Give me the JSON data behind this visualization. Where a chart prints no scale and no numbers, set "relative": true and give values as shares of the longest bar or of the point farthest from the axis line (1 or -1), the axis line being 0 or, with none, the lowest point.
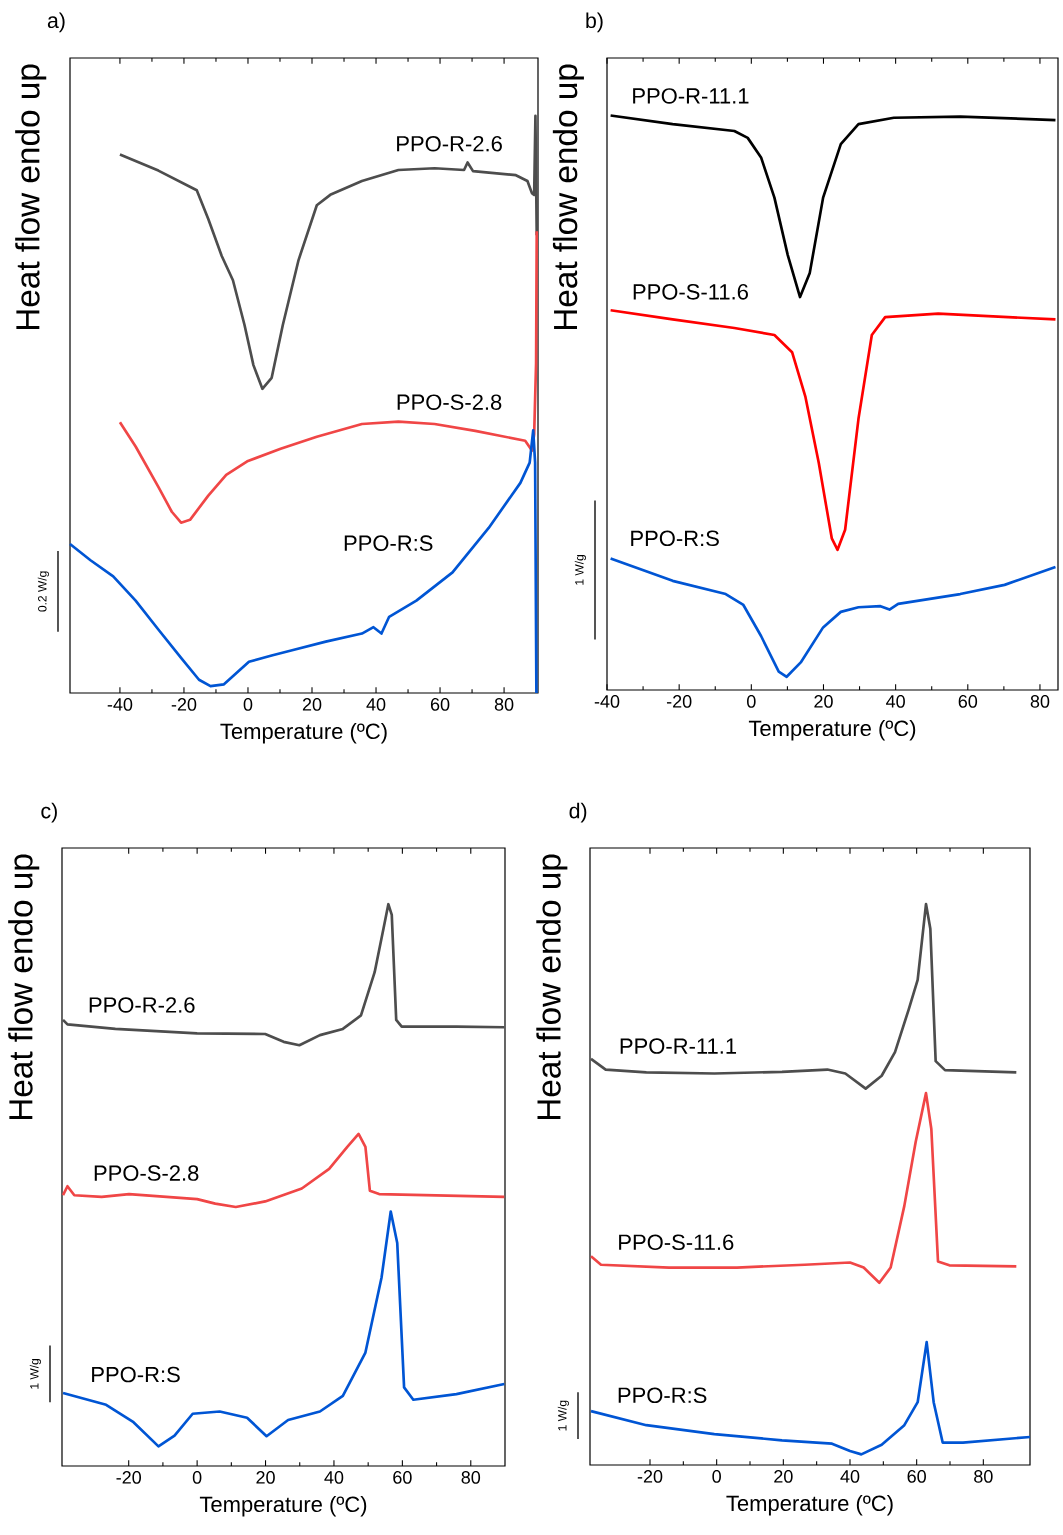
{
  "chart_data": [
    {
      "type": "line",
      "title": "a)",
      "xlabel": "Temperature (ºC)",
      "ylabel": "Heat flow endo up",
      "relative": true,
      "xlim": [
        -55.6,
        90.6
      ],
      "xticks": [
        -40,
        -20,
        0,
        20,
        40,
        60,
        80
      ],
      "annotations": [
        "0.2 W/g"
      ],
      "series": [
        {
          "name": "PPO-R-2.6",
          "color": "#4d4d4d",
          "x": [
            -40,
            -28,
            -16,
            -12.4,
            -8.2,
            -4.7,
            -1.1,
            1.7,
            4.5,
            7.4,
            10.9,
            15.8,
            21.5,
            25.7,
            35.6,
            47.0,
            58.3,
            67.5,
            68.6,
            70.3,
            83.7,
            87.3,
            88.7,
            89.4,
            89.8,
            90.2
          ],
          "values": [
            0.933,
            0.905,
            0.871,
            0.821,
            0.757,
            0.715,
            0.638,
            0.568,
            0.527,
            0.546,
            0.638,
            0.75,
            0.845,
            0.863,
            0.887,
            0.906,
            0.909,
            0.906,
            0.919,
            0.904,
            0.897,
            0.887,
            0.866,
            0.863,
            1.0,
            0.793
          ]
        },
        {
          "name": "PPO-S-2.8",
          "color": "#f04646",
          "x": [
            -40,
            -35.1,
            -28.0,
            -23.8,
            -20.9,
            -18.1,
            -12.4,
            -6.8,
            0,
            10.2,
            21.5,
            35.6,
            47.0,
            58.3,
            71.0,
            86.6,
            88.7,
            89.4,
            90.0,
            90.2
          ],
          "values": [
            0.469,
            0.427,
            0.357,
            0.314,
            0.295,
            0.3,
            0.342,
            0.378,
            0.402,
            0.423,
            0.444,
            0.466,
            0.47,
            0.466,
            0.454,
            0.437,
            0.42,
            0.448,
            0.571,
            0.8
          ]
        },
        {
          "name": "PPO-R:S",
          "color": "#0055d4",
          "x": [
            -55.6,
            -49.2,
            -42.1,
            -35.1,
            -28.0,
            -20.9,
            -15.3,
            -11.7,
            -7.5,
            0.3,
            7.4,
            14.4,
            24.3,
            35.6,
            39.2,
            41.7,
            44.1,
            52.6,
            63.9,
            75.2,
            85.1,
            88.0,
            89.1,
            89.7,
            90.1
          ],
          "values": [
            0.258,
            0.23,
            0.202,
            0.16,
            0.11,
            0.061,
            0.023,
            0.012,
            0.015,
            0.054,
            0.065,
            0.075,
            0.089,
            0.103,
            0.114,
            0.103,
            0.132,
            0.16,
            0.209,
            0.286,
            0.364,
            0.399,
            0.455,
            0.399,
            0.0
          ]
        }
      ]
    },
    {
      "type": "line",
      "title": "b)",
      "xlabel": "Temperature (ºC)",
      "ylabel": "Heat flow endo up",
      "relative": true,
      "xlim": [
        -40,
        85
      ],
      "xticks": [
        -40,
        -20,
        0,
        20,
        40,
        60,
        80
      ],
      "annotations": [
        "1 W/g"
      ],
      "series": [
        {
          "name": "PPO-R-11.1",
          "color": "#000000",
          "x": [
            -39,
            -21.8,
            -4.7,
            -1.0,
            2.7,
            6.4,
            10.1,
            13.5,
            16.2,
            19.9,
            24.8,
            29.7,
            39.5,
            57.9,
            84.3
          ],
          "values": [
            1.0,
            0.985,
            0.973,
            0.961,
            0.927,
            0.857,
            0.757,
            0.684,
            0.726,
            0.857,
            0.95,
            0.985,
            0.996,
            0.998,
            0.992
          ]
        },
        {
          "name": "PPO-S-11.6",
          "color": "#ff0000",
          "x": [
            -39,
            -21.8,
            -4.7,
            6.4,
            11.3,
            15.0,
            18.7,
            22.3,
            23.9,
            26.0,
            29.7,
            33.4,
            37.1,
            51.8,
            84.3
          ],
          "values": [
            0.661,
            0.645,
            0.63,
            0.618,
            0.588,
            0.51,
            0.395,
            0.264,
            0.244,
            0.279,
            0.472,
            0.618,
            0.649,
            0.655,
            0.645
          ]
        },
        {
          "name": "PPO-R:S",
          "color": "#0055d4",
          "x": [
            -39,
            -21.8,
            -7.1,
            -2.2,
            2.7,
            7.6,
            9.8,
            13.7,
            19.9,
            24.8,
            29.7,
            35.8,
            38.3,
            40.7,
            57.9,
            70.2,
            84.3
          ],
          "values": [
            0.229,
            0.19,
            0.167,
            0.148,
            0.094,
            0.032,
            0.023,
            0.048,
            0.109,
            0.136,
            0.144,
            0.146,
            0.14,
            0.15,
            0.167,
            0.183,
            0.214
          ]
        }
      ]
    },
    {
      "type": "line",
      "title": "c)",
      "xlabel": "Temperature (ºC)",
      "ylabel": "Heat flow endo up",
      "relative": true,
      "xlim": [
        -39.5,
        90
      ],
      "xticks": [
        -20,
        0,
        20,
        40,
        60,
        80
      ],
      "annotations": [
        "1 W/g"
      ],
      "series": [
        {
          "name": "PPO-R-2.6",
          "color": "#4d4d4d",
          "x": [
            -39.2,
            -37.9,
            -23.9,
            0,
            19.9,
            25.3,
            29.9,
            35.9,
            42.6,
            47.9,
            51.9,
            54.5,
            55.9,
            56.9,
            58.2,
            59.8,
            75.8,
            89.8
          ],
          "values": [
            0.794,
            0.786,
            0.778,
            0.77,
            0.769,
            0.755,
            0.749,
            0.767,
            0.778,
            0.802,
            0.879,
            0.957,
            1.0,
            0.981,
            0.794,
            0.782,
            0.782,
            0.781
          ]
        },
        {
          "name": "PPO-S-2.8",
          "color": "#f04646",
          "x": [
            -39.2,
            -37.9,
            -35.9,
            -27.9,
            -19.9,
            0,
            5.3,
            11.3,
            19.9,
            30.6,
            38.6,
            43.9,
            47.2,
            49.2,
            50.5,
            53.2,
            89.8
          ],
          "values": [
            0.482,
            0.498,
            0.482,
            0.479,
            0.484,
            0.475,
            0.467,
            0.461,
            0.471,
            0.494,
            0.529,
            0.568,
            0.591,
            0.568,
            0.49,
            0.484,
            0.479
          ]
        },
        {
          "name": "PPO-R:S",
          "color": "#0055d4",
          "x": [
            -39.2,
            -26.6,
            -18.6,
            -11.3,
            -6.6,
            -1.3,
            6.6,
            14.6,
            20.3,
            26.6,
            35.9,
            42.6,
            49.2,
            53.9,
            56.6,
            58.5,
            60.5,
            63.2,
            75.8,
            89.8
          ],
          "values": [
            0.13,
            0.109,
            0.078,
            0.035,
            0.054,
            0.093,
            0.097,
            0.086,
            0.053,
            0.082,
            0.097,
            0.125,
            0.202,
            0.335,
            0.453,
            0.397,
            0.14,
            0.118,
            0.128,
            0.146
          ]
        }
      ]
    },
    {
      "type": "line",
      "title": "d)",
      "xlabel": "Temperature (ºC)",
      "ylabel": "Heat flow endo up",
      "relative": true,
      "xlim": [
        -38,
        94
      ],
      "xticks": [
        -20,
        0,
        20,
        40,
        60,
        80
      ],
      "annotations": [
        "1 W/g"
      ],
      "series": [
        {
          "name": "PPO-R-11.1",
          "color": "#4d4d4d",
          "x": [
            -37.7,
            -33.3,
            -21.1,
            -0.7,
            19.6,
            33.2,
            38.6,
            44.7,
            49.5,
            53.5,
            57.6,
            60.3,
            62.8,
            64.1,
            65.7,
            68.5,
            89.9
          ],
          "values": [
            0.724,
            0.705,
            0.7,
            0.698,
            0.701,
            0.705,
            0.698,
            0.671,
            0.694,
            0.736,
            0.812,
            0.865,
            1.0,
            0.956,
            0.72,
            0.704,
            0.7
          ]
        },
        {
          "name": "PPO-S-11.6",
          "color": "#f04646",
          "x": [
            -37.7,
            -34.7,
            -14.3,
            6.1,
            26.4,
            40.0,
            44.1,
            48.8,
            52.2,
            56.3,
            59.7,
            62.8,
            64.4,
            66.4,
            69.8,
            89.9
          ],
          "values": [
            0.372,
            0.357,
            0.352,
            0.352,
            0.357,
            0.361,
            0.352,
            0.325,
            0.352,
            0.462,
            0.576,
            0.663,
            0.599,
            0.363,
            0.356,
            0.354
          ]
        },
        {
          "name": "PPO-R:S",
          "color": "#0055d4",
          "x": [
            -37.7,
            -21.1,
            -0.7,
            19.6,
            34.6,
            40.0,
            43.4,
            49.5,
            56.3,
            60.3,
            63.0,
            65.1,
            67.8,
            73.9,
            94.0
          ],
          "values": [
            0.096,
            0.071,
            0.055,
            0.044,
            0.038,
            0.025,
            0.019,
            0.036,
            0.071,
            0.112,
            0.219,
            0.112,
            0.04,
            0.04,
            0.05
          ]
        }
      ]
    }
  ]
}
